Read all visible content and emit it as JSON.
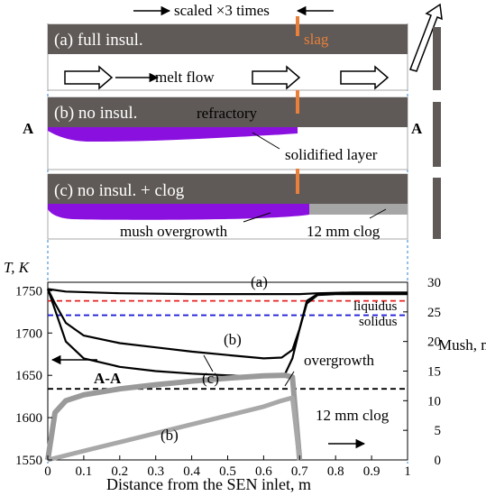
{
  "top_note": "scaled ×3 times",
  "panel_a": {
    "label": "(a) full insul.",
    "slag": "slag",
    "flow": "melt flow"
  },
  "panel_b": {
    "label": "(b) no insul.",
    "refractory": "refractory",
    "solidified": "solidified layer"
  },
  "panel_c": {
    "label": "(c) no insul. + clog",
    "mush": "mush overgrowth",
    "clog": "12 mm clog"
  },
  "section_marks": {
    "left": "A",
    "right": "A",
    "arrow_label": "A-A"
  },
  "colors": {
    "refractory": "#5f5a57",
    "slag": "#e8803a",
    "solid": "#8a10e0",
    "clog": "#a6a6a6",
    "liquidus": "#e82020",
    "solidus": "#2020d8",
    "guide": "#2f7fd0"
  },
  "chart_data": {
    "type": "line",
    "xlabel": "Distance from the SEN inlet, m",
    "ylabel_left": "T, K",
    "ylabel_right": "Mush, mm",
    "xlim": [
      0,
      1
    ],
    "ylim_left": [
      1550,
      1760
    ],
    "ylim_right": [
      0,
      30
    ],
    "x_ticks": [
      "0",
      "0.1",
      "0.2",
      "0.3",
      "0.4",
      "0.5",
      "0.6",
      "0.7",
      "0.8",
      "0.9",
      "1"
    ],
    "y_ticks_left": [
      "1550",
      "1600",
      "1650",
      "1700",
      "1750"
    ],
    "y_ticks_right": [
      "0",
      "5",
      "10",
      "15",
      "20",
      "25",
      "30"
    ],
    "reference_lines": [
      {
        "name": "liquidus",
        "value": 1738
      },
      {
        "name": "solidus",
        "value": 1721
      },
      {
        "name": "12 mm clog",
        "value": 12,
        "axis": "right"
      }
    ],
    "series": [
      {
        "name": "(a)",
        "axis": "left",
        "x": [
          0,
          0.05,
          0.2,
          0.4,
          0.6,
          0.7,
          0.75,
          0.85,
          1.0
        ],
        "y": [
          1752,
          1749,
          1747,
          1746,
          1746,
          1746,
          1747,
          1748,
          1748
        ]
      },
      {
        "name": "(b)",
        "axis": "left",
        "x": [
          0,
          0.02,
          0.05,
          0.1,
          0.2,
          0.3,
          0.4,
          0.5,
          0.6,
          0.65,
          0.68,
          0.7,
          0.72,
          0.75,
          0.8,
          0.9,
          1.0
        ],
        "y": [
          1752,
          1735,
          1712,
          1697,
          1688,
          1683,
          1678,
          1674,
          1670,
          1671,
          1680,
          1705,
          1735,
          1745,
          1746,
          1746,
          1746
        ]
      },
      {
        "name": "(c)",
        "axis": "left",
        "x": [
          0,
          0.01,
          0.03,
          0.05,
          0.1,
          0.2,
          0.3,
          0.4,
          0.5,
          0.6,
          0.66,
          0.68,
          0.7,
          0.72,
          0.75,
          0.8,
          0.9,
          1.0
        ],
        "y": [
          1752,
          1740,
          1715,
          1690,
          1670,
          1660,
          1655,
          1652,
          1650,
          1648,
          1652,
          1670,
          1705,
          1738,
          1746,
          1747,
          1747,
          1747
        ]
      },
      {
        "name": "overgrowth",
        "axis": "right",
        "x": [
          0,
          0.02,
          0.05,
          0.1,
          0.2,
          0.3,
          0.4,
          0.5,
          0.6,
          0.66,
          0.68,
          0.69,
          0.7
        ],
        "y": [
          0,
          8,
          10,
          11,
          12,
          12.7,
          13.3,
          13.8,
          14.2,
          14.3,
          14,
          7,
          0
        ]
      },
      {
        "name": "(b)",
        "axis": "right",
        "x": [
          0,
          0.1,
          0.2,
          0.3,
          0.4,
          0.5,
          0.6,
          0.65,
          0.68,
          0.7
        ],
        "y": [
          0,
          1.5,
          3,
          4.5,
          6,
          7.5,
          9,
          10,
          10.5,
          0
        ]
      }
    ],
    "series_labels": [
      "(a)",
      "(b)",
      "(c)",
      "overgrowth",
      "(b)"
    ]
  }
}
